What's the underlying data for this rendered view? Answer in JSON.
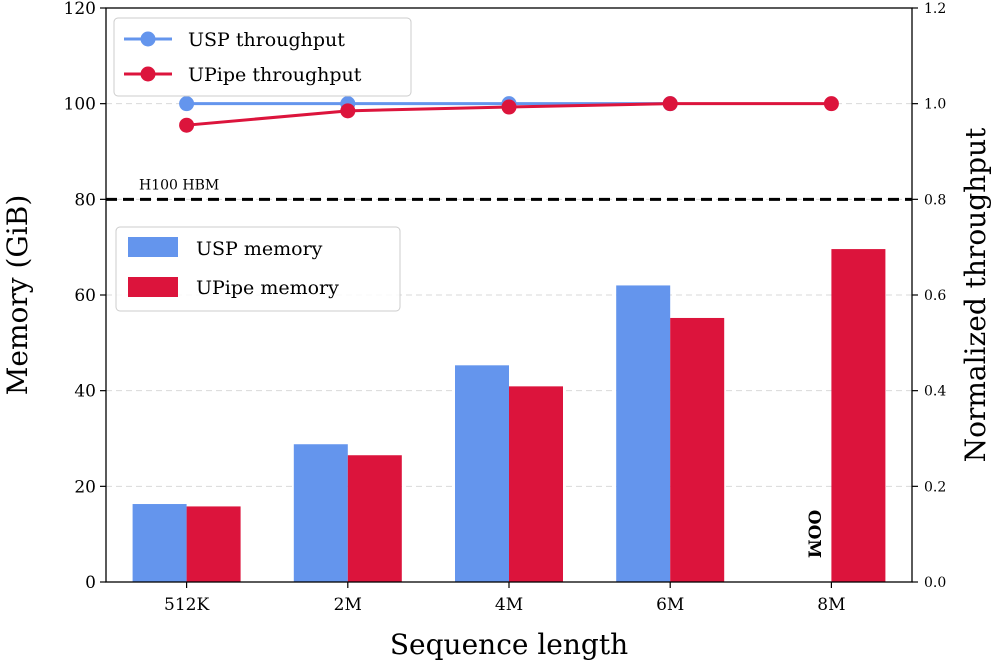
{
  "chart_data": {
    "type": "bar+line",
    "categories": [
      "512K",
      "2M",
      "4M",
      "6M",
      "8M"
    ],
    "bar_series": [
      {
        "name": "USP memory",
        "color": "#6495ED",
        "values": [
          16.3,
          28.8,
          45.3,
          62.0,
          null
        ]
      },
      {
        "name": "UPipe memory",
        "color": "#DC143C",
        "values": [
          15.8,
          26.5,
          40.9,
          55.2,
          69.6
        ]
      }
    ],
    "line_series": [
      {
        "name": "USP throughput",
        "color": "#6495ED",
        "values": [
          1.0,
          1.0,
          1.0,
          1.0,
          null
        ]
      },
      {
        "name": "UPipe throughput",
        "color": "#DC143C",
        "values": [
          0.955,
          0.985,
          0.993,
          1.0,
          1.0
        ]
      }
    ],
    "xlabel": "Sequence length",
    "ylabel_left": "Memory (GiB)",
    "ylabel_right": "Normalized throughput",
    "ylim_left": [
      0,
      120
    ],
    "ylim_right": [
      0,
      1.2
    ],
    "yticks_left": [
      "0",
      "20",
      "40",
      "60",
      "80",
      "100",
      "120"
    ],
    "yticks_right": [
      "0.0",
      "0.2",
      "0.4",
      "0.6",
      "0.8",
      "1.0",
      "1.2"
    ],
    "reference_line": {
      "label": "H100 HBM",
      "value": 80
    },
    "annotation": {
      "text": "OOM",
      "category": "8M",
      "series": "USP memory"
    },
    "grid": "horizontal dashed"
  }
}
